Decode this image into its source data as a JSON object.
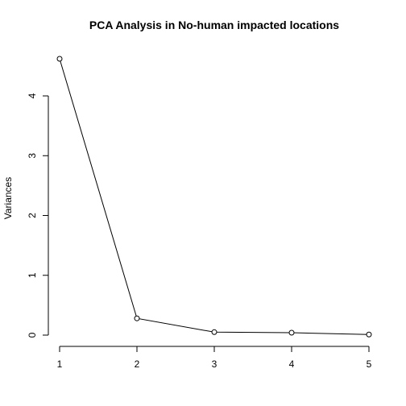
{
  "chart_data": {
    "type": "line",
    "title": "PCA Analysis in No-human impacted locations",
    "xlabel": "",
    "ylabel": "Variances",
    "x": [
      1,
      2,
      3,
      4,
      5
    ],
    "values": [
      4.62,
      0.28,
      0.05,
      0.04,
      0.01
    ],
    "xlim": [
      1,
      5
    ],
    "ylim": [
      0,
      4.62
    ],
    "x_ticks": [
      1,
      2,
      3,
      4,
      5
    ],
    "y_ticks": [
      0,
      1,
      2,
      3,
      4
    ],
    "grid": false,
    "legend": "none",
    "line_color": "#000000",
    "marker": "open-circle"
  }
}
